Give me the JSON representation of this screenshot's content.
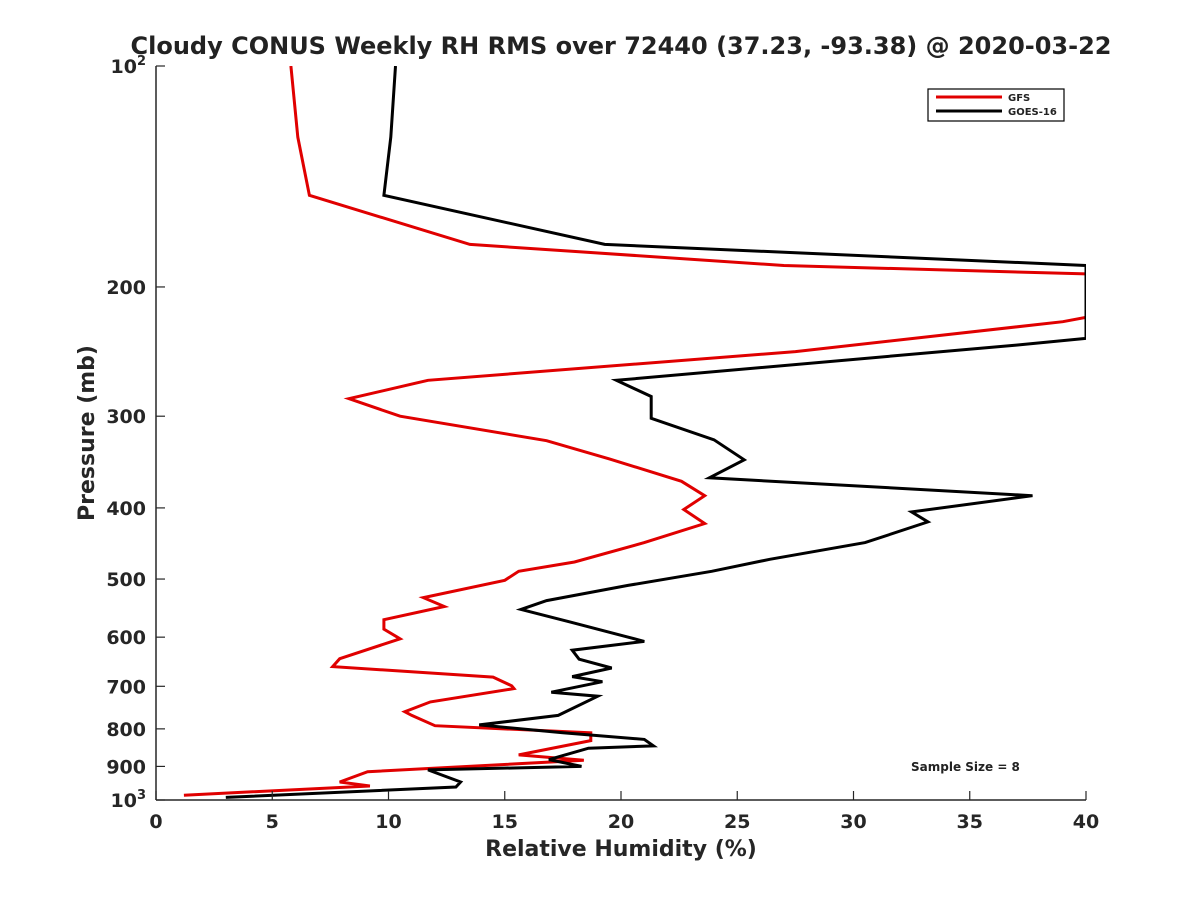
{
  "chart_data": {
    "type": "line",
    "title": "Cloudy CONUS Weekly RH RMS over 72440 (37.23, -93.38) @ 2020-03-22",
    "xlabel": "Relative Humidity (%)",
    "ylabel": "Pressure (mb)",
    "xlim": [
      0,
      40
    ],
    "ylim": [
      100,
      1000
    ],
    "yscale": "log",
    "y_reversed": true,
    "grid": false,
    "legend_position": "top-right",
    "annotation": "Sample Size = 8",
    "x_ticks": [
      {
        "value": 0,
        "label": "0"
      },
      {
        "value": 5,
        "label": "5"
      },
      {
        "value": 10,
        "label": "10"
      },
      {
        "value": 15,
        "label": "15"
      },
      {
        "value": 20,
        "label": "20"
      },
      {
        "value": 25,
        "label": "25"
      },
      {
        "value": 30,
        "label": "30"
      },
      {
        "value": 35,
        "label": "35"
      },
      {
        "value": 40,
        "label": "40"
      }
    ],
    "y_ticks": [
      {
        "value": 100,
        "base": "10",
        "sup": "2"
      },
      {
        "value": 200,
        "base": "200",
        "sup": ""
      },
      {
        "value": 300,
        "base": "300",
        "sup": ""
      },
      {
        "value": 400,
        "base": "400",
        "sup": ""
      },
      {
        "value": 500,
        "base": "500",
        "sup": ""
      },
      {
        "value": 600,
        "base": "600",
        "sup": ""
      },
      {
        "value": 700,
        "base": "700",
        "sup": ""
      },
      {
        "value": 800,
        "base": "800",
        "sup": ""
      },
      {
        "value": 900,
        "base": "900",
        "sup": ""
      },
      {
        "value": 1000,
        "base": "10",
        "sup": "3"
      }
    ],
    "series": [
      {
        "name": "GFS",
        "color": "#e00000",
        "points": [
          [
            5.8,
            100
          ],
          [
            6.1,
            125
          ],
          [
            6.6,
            150
          ],
          [
            13.5,
            175
          ],
          [
            27,
            187
          ],
          [
            40,
            192
          ],
          [
            40,
            220
          ],
          [
            39,
            223
          ],
          [
            27.5,
            245
          ],
          [
            11.7,
            268
          ],
          [
            8.3,
            284
          ],
          [
            10.5,
            300
          ],
          [
            16.8,
            324
          ],
          [
            19.5,
            343
          ],
          [
            22.6,
            368
          ],
          [
            23.6,
            385
          ],
          [
            22.7,
            402
          ],
          [
            23.6,
            420
          ],
          [
            21,
            446
          ],
          [
            18,
            474
          ],
          [
            15.6,
            488
          ],
          [
            15,
            502
          ],
          [
            11.5,
            530
          ],
          [
            12.4,
            545
          ],
          [
            9.8,
            568
          ],
          [
            9.8,
            585
          ],
          [
            10.5,
            603
          ],
          [
            7.9,
            642
          ],
          [
            7.6,
            658
          ],
          [
            14.5,
            680
          ],
          [
            15.3,
            699
          ],
          [
            15.4,
            705
          ],
          [
            11.8,
            735
          ],
          [
            10.7,
            758
          ],
          [
            11,
            767
          ],
          [
            12,
            792
          ],
          [
            18.7,
            810
          ],
          [
            18.7,
            830
          ],
          [
            15.6,
            868
          ],
          [
            18.4,
            883
          ],
          [
            9.1,
            915
          ],
          [
            7.9,
            945
          ],
          [
            9.2,
            957
          ],
          [
            1.2,
            985
          ]
        ]
      },
      {
        "name": "GOES-16",
        "color": "#000000",
        "points": [
          [
            10.3,
            100
          ],
          [
            10.1,
            125
          ],
          [
            9.8,
            150
          ],
          [
            19.3,
            175
          ],
          [
            40,
            187
          ],
          [
            40,
            235
          ],
          [
            37,
            240
          ],
          [
            19.8,
            268
          ],
          [
            21.3,
            282
          ],
          [
            21.3,
            302
          ],
          [
            24.0,
            323
          ],
          [
            25.3,
            344
          ],
          [
            23.8,
            364
          ],
          [
            37.7,
            385
          ],
          [
            32.5,
            405
          ],
          [
            33.2,
            418
          ],
          [
            30.5,
            446
          ],
          [
            26.4,
            470
          ],
          [
            23.9,
            488
          ],
          [
            20.3,
            510
          ],
          [
            16.8,
            535
          ],
          [
            15.7,
            550
          ],
          [
            17.8,
            572
          ],
          [
            21,
            608
          ],
          [
            17.9,
            625
          ],
          [
            18.2,
            643
          ],
          [
            19.6,
            661
          ],
          [
            17.9,
            679
          ],
          [
            19.2,
            690
          ],
          [
            17,
            713
          ],
          [
            19,
            722
          ],
          [
            17.3,
            767
          ],
          [
            13.9,
            790
          ],
          [
            17.5,
            810
          ],
          [
            21,
            827
          ],
          [
            21.4,
            844
          ],
          [
            18.6,
            850
          ],
          [
            16.9,
            881
          ],
          [
            18.3,
            900
          ],
          [
            11.7,
            910
          ],
          [
            13.1,
            945
          ],
          [
            12.9,
            960
          ],
          [
            3.0,
            992
          ]
        ]
      }
    ]
  }
}
